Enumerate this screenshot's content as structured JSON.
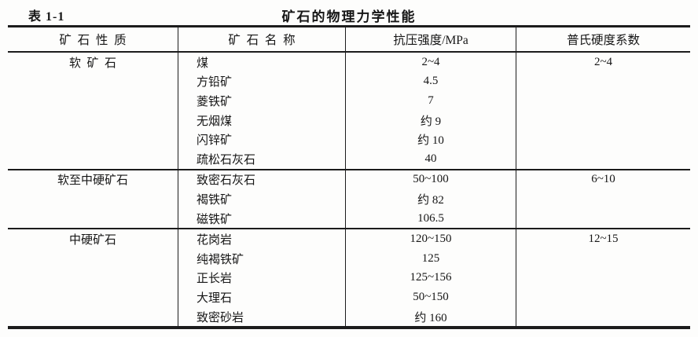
{
  "page": {
    "table_label": "表 1-1",
    "title": "矿石的物理力学性能"
  },
  "table": {
    "headers": [
      "矿  石  性  质",
      "矿  石  名  称",
      "抗压强度/MPa",
      "普氏硬度系数"
    ],
    "groups": [
      {
        "property": "软  矿  石",
        "hardness": "2~4",
        "rows": [
          {
            "name": "煤",
            "strength": "2~4"
          },
          {
            "name": "方铅矿",
            "strength": "4.5"
          },
          {
            "name": "菱铁矿",
            "strength": "7"
          },
          {
            "name": "无烟煤",
            "strength": "约 9"
          },
          {
            "name": "闪锌矿",
            "strength": "约 10"
          },
          {
            "name": "疏松石灰石",
            "strength": "40"
          }
        ]
      },
      {
        "property": "软至中硬矿石",
        "hardness": "6~10",
        "rows": [
          {
            "name": "致密石灰石",
            "strength": "50~100"
          },
          {
            "name": "褐铁矿",
            "strength": "约 82"
          },
          {
            "name": "磁铁矿",
            "strength": "106.5"
          }
        ]
      },
      {
        "property": "中硬矿石",
        "hardness": "12~15",
        "rows": [
          {
            "name": "花岗岩",
            "strength": "120~150"
          },
          {
            "name": "纯褐铁矿",
            "strength": "125"
          },
          {
            "name": "正长岩",
            "strength": "125~156"
          },
          {
            "name": "大理石",
            "strength": "50~150"
          },
          {
            "name": "致密砂岩",
            "strength": "约 160"
          }
        ]
      }
    ]
  }
}
